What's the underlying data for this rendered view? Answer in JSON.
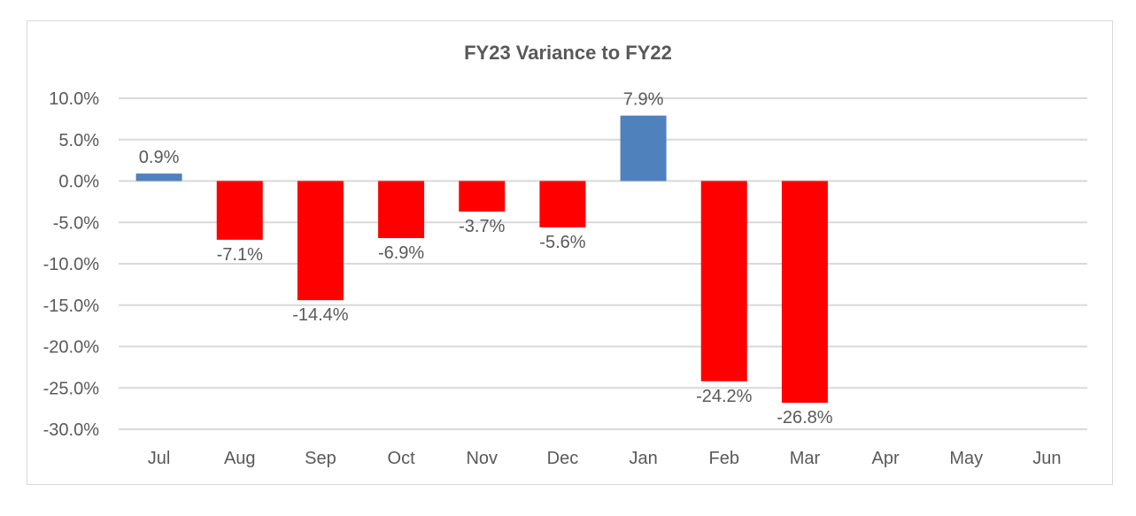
{
  "chart_data": {
    "type": "bar",
    "title": "FY23 Variance to FY22",
    "xlabel": "",
    "ylabel": "",
    "ylim": [
      -30,
      10
    ],
    "yticks": [
      10,
      5,
      0,
      -5,
      -10,
      -15,
      -20,
      -25,
      -30
    ],
    "ytick_labels": [
      "10.0%",
      "5.0%",
      "0.0%",
      "-5.0%",
      "-10.0%",
      "-15.0%",
      "-20.0%",
      "-25.0%",
      "-30.0%"
    ],
    "categories": [
      "Jul",
      "Aug",
      "Sep",
      "Oct",
      "Nov",
      "Dec",
      "Jan",
      "Feb",
      "Mar",
      "Apr",
      "May",
      "Jun"
    ],
    "values": [
      0.9,
      -7.1,
      -14.4,
      -6.9,
      -3.7,
      -5.6,
      7.9,
      -24.2,
      -26.8,
      null,
      null,
      null
    ],
    "data_labels": [
      "0.9%",
      "-7.1%",
      "-14.4%",
      "-6.9%",
      "-3.7%",
      "-5.6%",
      "7.9%",
      "-24.2%",
      "-26.8%",
      "",
      "",
      ""
    ],
    "grid": true,
    "legend": "none",
    "colors": {
      "positive": "#4F81BD",
      "negative": "#FF0000",
      "grid": "#d9d9d9"
    }
  }
}
